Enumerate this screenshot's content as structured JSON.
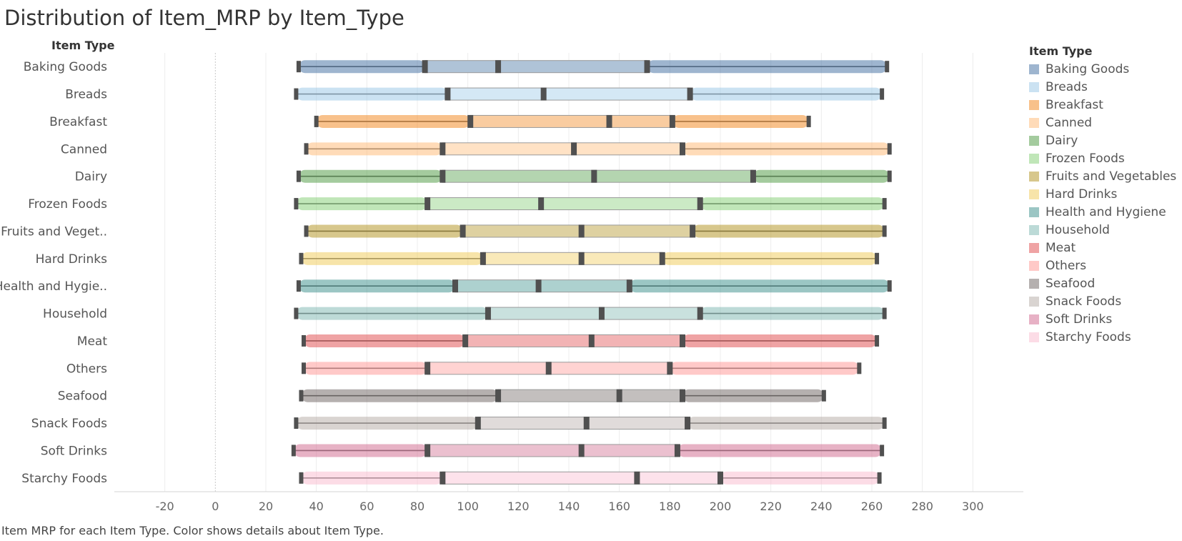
{
  "title": "Distribution of Item_MRP by Item_Type",
  "caption": "Item MRP for each Item Type.  Color shows details about Item Type.",
  "chart_data": {
    "type": "box",
    "row_header": "Item Type",
    "legend_title": "Item Type",
    "legend_position": "right",
    "x_ticks": [
      -20,
      0,
      20,
      40,
      60,
      80,
      100,
      120,
      140,
      160,
      180,
      200,
      220,
      240,
      260,
      280,
      300
    ],
    "xlim": [
      -40,
      320
    ],
    "grid": true,
    "categories": [
      {
        "label": "Baking Goods",
        "legend": "Baking Goods",
        "color": "#4e79a7",
        "min": 33,
        "q1": 83,
        "median": 112,
        "q3": 171,
        "max": 266
      },
      {
        "label": "Breads",
        "legend": "Breads",
        "color": "#a0cbe8",
        "min": 32,
        "q1": 92,
        "median": 130,
        "q3": 188,
        "max": 264
      },
      {
        "label": "Breakfast",
        "legend": "Breakfast",
        "color": "#f28e2b",
        "min": 40,
        "q1": 101,
        "median": 156,
        "q3": 181,
        "max": 235
      },
      {
        "label": "Canned",
        "legend": "Canned",
        "color": "#ffbe7d",
        "min": 36,
        "q1": 90,
        "median": 142,
        "q3": 185,
        "max": 267
      },
      {
        "label": "Dairy",
        "legend": "Dairy",
        "color": "#59a14f",
        "min": 33,
        "q1": 90,
        "median": 150,
        "q3": 213,
        "max": 267
      },
      {
        "label": "Frozen Foods",
        "legend": "Frozen Foods",
        "color": "#8cd17d",
        "min": 32,
        "q1": 84,
        "median": 129,
        "q3": 192,
        "max": 265
      },
      {
        "label": "Fruits and Veget..",
        "legend": "Fruits and Vegetables",
        "color": "#b6992d",
        "min": 36,
        "q1": 98,
        "median": 145,
        "q3": 189,
        "max": 265
      },
      {
        "label": "Hard Drinks",
        "legend": "Hard Drinks",
        "color": "#f1ce63",
        "min": 34,
        "q1": 106,
        "median": 145,
        "q3": 177,
        "max": 262
      },
      {
        "label": "Health and Hygie..",
        "legend": "Health and Hygiene",
        "color": "#499894",
        "min": 33,
        "q1": 95,
        "median": 128,
        "q3": 164,
        "max": 267
      },
      {
        "label": "Household",
        "legend": "Household",
        "color": "#86bcb6",
        "min": 32,
        "q1": 108,
        "median": 153,
        "q3": 192,
        "max": 265
      },
      {
        "label": "Meat",
        "legend": "Meat",
        "color": "#e15759",
        "min": 35,
        "q1": 99,
        "median": 149,
        "q3": 185,
        "max": 262
      },
      {
        "label": "Others",
        "legend": "Others",
        "color": "#ff9d9a",
        "min": 35,
        "q1": 84,
        "median": 132,
        "q3": 180,
        "max": 255
      },
      {
        "label": "Seafood",
        "legend": "Seafood",
        "color": "#79706e",
        "min": 34,
        "q1": 112,
        "median": 160,
        "q3": 185,
        "max": 241
      },
      {
        "label": "Snack Foods",
        "legend": "Snack Foods",
        "color": "#bab0ac",
        "min": 32,
        "q1": 104,
        "median": 147,
        "q3": 187,
        "max": 265
      },
      {
        "label": "Soft Drinks",
        "legend": "Soft Drinks",
        "color": "#d37295",
        "min": 31,
        "q1": 84,
        "median": 145,
        "q3": 183,
        "max": 264
      },
      {
        "label": "Starchy Foods",
        "legend": "Starchy Foods",
        "color": "#fabfd2",
        "min": 34,
        "q1": 90,
        "median": 167,
        "q3": 200,
        "max": 263
      }
    ]
  }
}
